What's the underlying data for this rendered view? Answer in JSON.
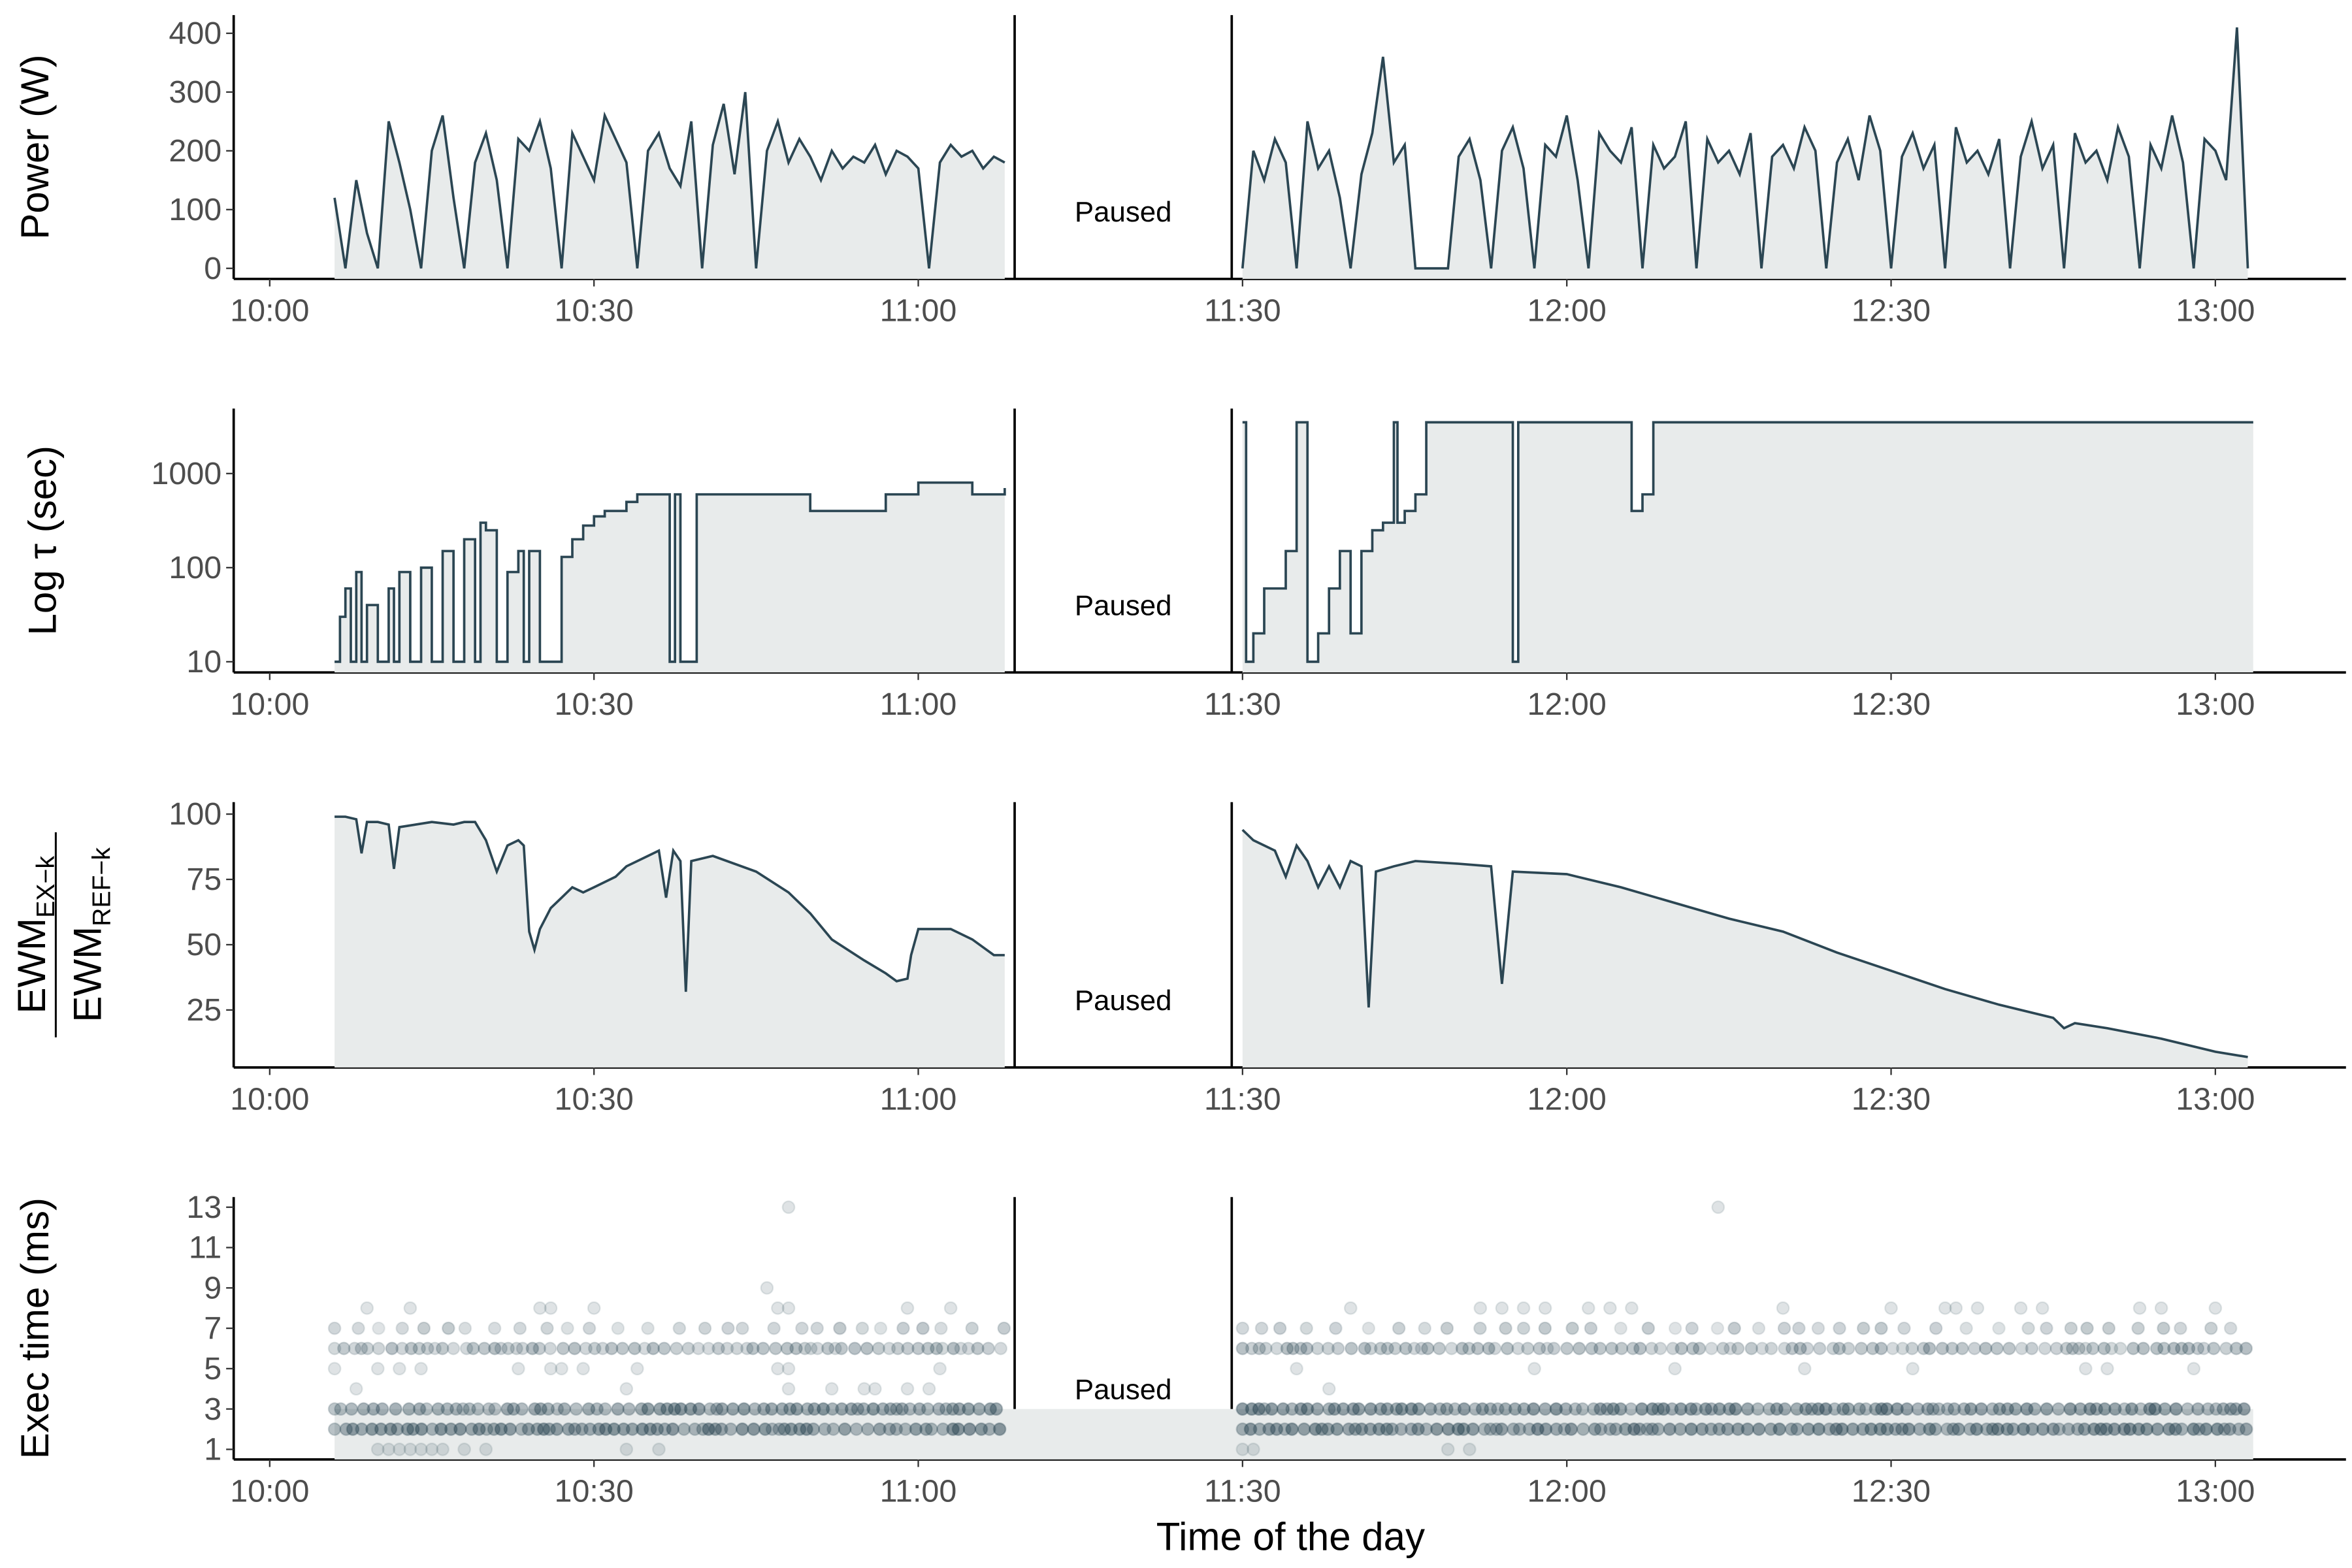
{
  "x_axis": {
    "label": "Time of the day",
    "range": [
      "09:56:40",
      "13:12:05"
    ],
    "ticks": [
      "10:00",
      "10:30",
      "11:00",
      "11:30",
      "12:00",
      "12:30",
      "13:00"
    ]
  },
  "pause": {
    "label": "Paused",
    "start": "11:08:55",
    "end": "11:29:00"
  },
  "colors": {
    "line": "#2b4653",
    "fill": "#e8ebeb",
    "tick_text": "#4d4d4d"
  },
  "chart_data": [
    {
      "type": "area",
      "ylabel": "Power (W)",
      "ylim": [
        -18,
        431
      ],
      "yticks": [
        "0",
        "100",
        "200",
        "300",
        "400"
      ],
      "segments": [
        {
          "start": "10:06",
          "step_min": 1,
          "values": [
            120,
            0,
            150,
            60,
            0,
            250,
            180,
            100,
            0,
            200,
            260,
            120,
            0,
            180,
            230,
            150,
            0,
            220,
            200,
            250,
            170,
            0,
            230,
            190,
            150,
            260,
            220,
            180,
            0,
            200,
            230,
            170,
            140,
            250,
            0,
            210,
            280,
            160,
            300,
            0,
            200,
            250,
            180,
            220,
            190,
            150,
            200,
            170,
            190,
            180,
            210,
            160,
            200,
            190,
            170,
            0,
            180,
            210,
            190,
            200,
            170,
            190,
            180
          ]
        },
        {
          "start": "11:30",
          "step_min": 1,
          "values": [
            0,
            200,
            150,
            220,
            180,
            0,
            250,
            170,
            200,
            120,
            0,
            160,
            230,
            360,
            180,
            210,
            0,
            0,
            0,
            0,
            190,
            220,
            150,
            0,
            200,
            240,
            170,
            0,
            210,
            190,
            260,
            150,
            0,
            230,
            200,
            180,
            240,
            0,
            210,
            170,
            190,
            250,
            0,
            220,
            180,
            200,
            160,
            230,
            0,
            190,
            210,
            170,
            240,
            200,
            0,
            180,
            220,
            150,
            260,
            200,
            0,
            190,
            230,
            170,
            210,
            0,
            240,
            180,
            200,
            160,
            220,
            0,
            190,
            250,
            170,
            210,
            0,
            230,
            180,
            200,
            150,
            240,
            190,
            0,
            210,
            170,
            260,
            180,
            0,
            220,
            200,
            150,
            410,
            0
          ]
        }
      ]
    },
    {
      "type": "line",
      "ylabel": "Log τ (sec)",
      "scale": "log",
      "ylim": [
        7.7,
        4900
      ],
      "yticks": [
        "10",
        "100",
        "1000"
      ],
      "step": true,
      "segments": [
        [
          [
            "10:06",
            10
          ],
          [
            "10:06:30",
            30
          ],
          [
            "10:07",
            60
          ],
          [
            "10:07:30",
            10
          ],
          [
            "10:08",
            90
          ],
          [
            "10:08:30",
            10
          ],
          [
            "10:09",
            40
          ],
          [
            "10:10",
            10
          ],
          [
            "10:11",
            60
          ],
          [
            "10:11:30",
            10
          ],
          [
            "10:12",
            90
          ],
          [
            "10:13",
            10
          ],
          [
            "10:14",
            100
          ],
          [
            "10:15",
            10
          ],
          [
            "10:16",
            150
          ],
          [
            "10:17",
            10
          ],
          [
            "10:18",
            200
          ],
          [
            "10:19",
            10
          ],
          [
            "10:19:30",
            300
          ],
          [
            "10:20",
            250
          ],
          [
            "10:21",
            10
          ],
          [
            "10:22",
            90
          ],
          [
            "10:23",
            150
          ],
          [
            "10:23:30",
            10
          ],
          [
            "10:24",
            150
          ],
          [
            "10:25",
            10
          ],
          [
            "10:26",
            10
          ],
          [
            "10:27",
            130
          ],
          [
            "10:28",
            200
          ],
          [
            "10:29",
            280
          ],
          [
            "10:30",
            350
          ],
          [
            "10:31",
            400
          ],
          [
            "10:33",
            500
          ],
          [
            "10:34",
            600
          ],
          [
            "10:37",
            10
          ],
          [
            "10:37:30",
            600
          ],
          [
            "10:38",
            10
          ],
          [
            "10:39",
            10
          ],
          [
            "10:39:30",
            600
          ],
          [
            "10:50",
            400
          ],
          [
            "10:57",
            600
          ],
          [
            "11:00",
            800
          ],
          [
            "11:05",
            600
          ],
          [
            "11:08",
            700
          ]
        ],
        [
          [
            "11:30",
            3500
          ],
          [
            "11:30:20",
            10
          ],
          [
            "11:31",
            20
          ],
          [
            "11:32",
            60
          ],
          [
            "11:34",
            150
          ],
          [
            "11:35",
            3500
          ],
          [
            "11:36",
            10
          ],
          [
            "11:37",
            20
          ],
          [
            "11:38",
            60
          ],
          [
            "11:39",
            150
          ],
          [
            "11:40",
            20
          ],
          [
            "11:41",
            150
          ],
          [
            "11:42",
            250
          ],
          [
            "11:43",
            300
          ],
          [
            "11:44",
            3500
          ],
          [
            "11:44:20",
            300
          ],
          [
            "11:45",
            400
          ],
          [
            "11:46",
            600
          ],
          [
            "11:47",
            3500
          ],
          [
            "11:55",
            10
          ],
          [
            "11:55:30",
            3500
          ],
          [
            "12:06",
            400
          ],
          [
            "12:07",
            600
          ],
          [
            "12:08",
            3500
          ],
          [
            "13:03:30",
            3500
          ]
        ]
      ]
    },
    {
      "type": "area",
      "ylabel": {
        "num": "EWM",
        "num_sub": "EX−k",
        "den": "EWM",
        "den_sub": "REF−k"
      },
      "ylim": [
        3,
        104.6
      ],
      "yticks": [
        "25",
        "50",
        "75",
        "100"
      ],
      "segments": [
        [
          [
            "10:06",
            99
          ],
          [
            "10:07",
            99
          ],
          [
            "10:08",
            98
          ],
          [
            "10:08:30",
            85
          ],
          [
            "10:09",
            97
          ],
          [
            "10:10",
            97
          ],
          [
            "10:11",
            96
          ],
          [
            "10:11:30",
            79
          ],
          [
            "10:12",
            95
          ],
          [
            "10:15",
            97
          ],
          [
            "10:17",
            96
          ],
          [
            "10:18",
            97
          ],
          [
            "10:19",
            97
          ],
          [
            "10:20",
            90
          ],
          [
            "10:21",
            78
          ],
          [
            "10:22",
            88
          ],
          [
            "10:23",
            90
          ],
          [
            "10:23:30",
            88
          ],
          [
            "10:24",
            55
          ],
          [
            "10:24:30",
            48
          ],
          [
            "10:25",
            56
          ],
          [
            "10:26",
            64
          ],
          [
            "10:27",
            68
          ],
          [
            "10:28",
            72
          ],
          [
            "10:29",
            70
          ],
          [
            "10:30",
            72
          ],
          [
            "10:32",
            76
          ],
          [
            "10:33",
            80
          ],
          [
            "10:35",
            84
          ],
          [
            "10:36",
            86
          ],
          [
            "10:36:40",
            68
          ],
          [
            "10:37:20",
            86
          ],
          [
            "10:38",
            82
          ],
          [
            "10:38:30",
            32
          ],
          [
            "10:39",
            82
          ],
          [
            "10:41",
            84
          ],
          [
            "10:45",
            78
          ],
          [
            "10:48",
            70
          ],
          [
            "10:50",
            62
          ],
          [
            "10:52",
            52
          ],
          [
            "10:55",
            44
          ],
          [
            "10:57",
            39
          ],
          [
            "10:58",
            36
          ],
          [
            "10:59",
            37
          ],
          [
            "10:59:20",
            46
          ],
          [
            "11:00",
            56
          ],
          [
            "11:03",
            56
          ],
          [
            "11:05",
            52
          ],
          [
            "11:07",
            46
          ],
          [
            "11:08",
            46
          ]
        ],
        [
          [
            "11:30",
            94
          ],
          [
            "11:31",
            90
          ],
          [
            "11:33",
            86
          ],
          [
            "11:34",
            76
          ],
          [
            "11:35",
            88
          ],
          [
            "11:36",
            82
          ],
          [
            "11:37",
            72
          ],
          [
            "11:38",
            80
          ],
          [
            "11:39",
            72
          ],
          [
            "11:40",
            82
          ],
          [
            "11:41",
            80
          ],
          [
            "11:41:40",
            26
          ],
          [
            "11:42:20",
            78
          ],
          [
            "11:44",
            80
          ],
          [
            "11:46",
            82
          ],
          [
            "11:50",
            81
          ],
          [
            "11:53",
            80
          ],
          [
            "11:54",
            35
          ],
          [
            "11:55",
            78
          ],
          [
            "12:00",
            77
          ],
          [
            "12:05",
            72
          ],
          [
            "12:10",
            66
          ],
          [
            "12:15",
            60
          ],
          [
            "12:20",
            55
          ],
          [
            "12:25",
            47
          ],
          [
            "12:30",
            40
          ],
          [
            "12:35",
            33
          ],
          [
            "12:40",
            27
          ],
          [
            "12:45",
            22
          ],
          [
            "12:46",
            18
          ],
          [
            "12:47",
            20
          ],
          [
            "12:50",
            18
          ],
          [
            "12:55",
            14
          ],
          [
            "13:00",
            9
          ],
          [
            "13:03",
            7
          ]
        ]
      ]
    },
    {
      "type": "scatter",
      "ylabel": "Exec time (ms)",
      "ylim": [
        0.5,
        13.5
      ],
      "yticks": [
        "1",
        "3",
        "5",
        "7",
        "9",
        "11",
        "13"
      ],
      "baseline_fill_to": 3,
      "bands": [
        {
          "y": 2,
          "start": "10:06",
          "end": "11:08",
          "density": "dense"
        },
        {
          "y": 2,
          "start": "11:30",
          "end": "13:03",
          "density": "dense"
        },
        {
          "y": 3,
          "start": "10:06",
          "end": "10:35",
          "density": "medium"
        },
        {
          "y": 3,
          "start": "10:35",
          "end": "11:08",
          "density": "dense"
        },
        {
          "y": 3,
          "start": "11:30",
          "end": "13:03",
          "density": "dense"
        },
        {
          "y": 6,
          "start": "10:06",
          "end": "11:08",
          "density": "sparse"
        },
        {
          "y": 6,
          "start": "11:30",
          "end": "13:03",
          "density": "sparse"
        },
        {
          "y": 7,
          "start": "10:06",
          "end": "11:08",
          "density": "rare"
        },
        {
          "y": 7,
          "start": "11:30",
          "end": "13:03",
          "density": "rare"
        }
      ],
      "points": [
        [
          "10:06",
          5
        ],
        [
          "10:08",
          4
        ],
        [
          "10:09",
          8
        ],
        [
          "10:13",
          8
        ],
        [
          "10:10",
          1
        ],
        [
          "10:11",
          1
        ],
        [
          "10:12",
          1
        ],
        [
          "10:13",
          1
        ],
        [
          "10:14",
          1
        ],
        [
          "10:15",
          1
        ],
        [
          "10:16",
          1
        ],
        [
          "10:18",
          1
        ],
        [
          "10:20",
          1
        ],
        [
          "10:10",
          5
        ],
        [
          "10:12",
          5
        ],
        [
          "10:14",
          5
        ],
        [
          "10:23",
          5
        ],
        [
          "10:26",
          5
        ],
        [
          "10:27",
          5
        ],
        [
          "10:29",
          5
        ],
        [
          "10:25",
          8
        ],
        [
          "10:26",
          8
        ],
        [
          "10:30",
          8
        ],
        [
          "10:33",
          1
        ],
        [
          "10:36",
          1
        ],
        [
          "10:33",
          4
        ],
        [
          "10:34",
          5
        ],
        [
          "10:46",
          9
        ],
        [
          "10:48",
          13
        ],
        [
          "10:47",
          8
        ],
        [
          "10:48",
          8
        ],
        [
          "10:48",
          4
        ],
        [
          "10:47",
          5
        ],
        [
          "10:48",
          5
        ],
        [
          "10:52",
          4
        ],
        [
          "10:55",
          4
        ],
        [
          "10:56",
          4
        ],
        [
          "10:59",
          4
        ],
        [
          "11:01",
          4
        ],
        [
          "10:59",
          8
        ],
        [
          "11:03",
          8
        ],
        [
          "11:02",
          5
        ],
        [
          "11:30",
          1
        ],
        [
          "11:31",
          1
        ],
        [
          "11:35",
          5
        ],
        [
          "11:38",
          4
        ],
        [
          "11:40",
          8
        ],
        [
          "11:49",
          1
        ],
        [
          "11:51",
          1
        ],
        [
          "11:52",
          8
        ],
        [
          "11:54",
          8
        ],
        [
          "11:56",
          8
        ],
        [
          "11:58",
          8
        ],
        [
          "11:57",
          5
        ],
        [
          "12:02",
          8
        ],
        [
          "12:04",
          8
        ],
        [
          "12:06",
          8
        ],
        [
          "12:14",
          13
        ],
        [
          "12:10",
          5
        ],
        [
          "12:20",
          8
        ],
        [
          "12:22",
          5
        ],
        [
          "12:30",
          8
        ],
        [
          "12:32",
          5
        ],
        [
          "12:35",
          8
        ],
        [
          "12:36",
          8
        ],
        [
          "12:38",
          8
        ],
        [
          "12:42",
          8
        ],
        [
          "12:44",
          8
        ],
        [
          "12:48",
          5
        ],
        [
          "12:50",
          5
        ],
        [
          "12:53",
          8
        ],
        [
          "12:55",
          8
        ],
        [
          "12:58",
          5
        ],
        [
          "13:00",
          8
        ]
      ]
    }
  ]
}
